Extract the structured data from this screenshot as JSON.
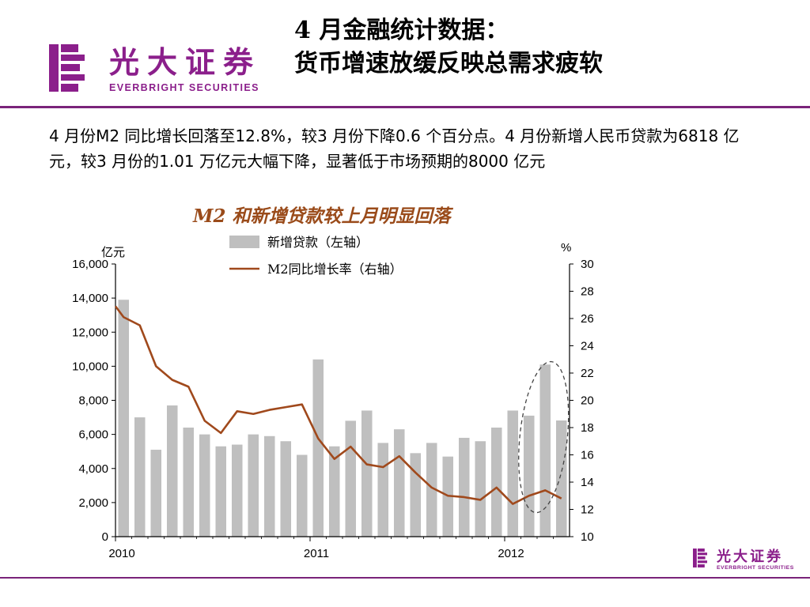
{
  "brand": {
    "name_cn": "光大证券",
    "name_en": "EVERBRIGHT SECURITIES",
    "color": "#8b1f8b"
  },
  "header": {
    "title_line1": "4 月金融统计数据：",
    "title_line2": "货币增速放缓反映总需求疲软"
  },
  "description": "4 月份M2 同比增长回落至12.8%，较3 月份下降0.6 个百分点。4 月份新增人民币贷款为6818 亿元，较3 月份的1.01 万亿元大幅下降，显著低于市场预期的8000 亿元",
  "chart_data": {
    "type": "bar+line",
    "title": "M2 和新增贷款较上月明显回落",
    "left_unit": "亿元",
    "right_unit": "%",
    "legend": [
      "新增贷款（左轴）",
      "M2同比增长率（右轴）"
    ],
    "legend_placement": "top",
    "x_tick_labels": [
      "2010",
      "2011",
      "2012"
    ],
    "left_axis": {
      "min": 0,
      "max": 16000,
      "step": 2000,
      "tick_labels": [
        "0",
        "2,000",
        "4,000",
        "6,000",
        "8,000",
        "10,000",
        "12,000",
        "14,000",
        "16,000"
      ]
    },
    "right_axis": {
      "min": 10,
      "max": 30,
      "step": 2,
      "tick_labels": [
        "10",
        "12",
        "14",
        "16",
        "18",
        "20",
        "22",
        "24",
        "26",
        "28",
        "30"
      ]
    },
    "months": [
      "2010-01",
      "2010-02",
      "2010-03",
      "2010-04",
      "2010-05",
      "2010-06",
      "2010-07",
      "2010-08",
      "2010-09",
      "2010-10",
      "2010-11",
      "2010-12",
      "2011-01",
      "2011-02",
      "2011-03",
      "2011-04",
      "2011-05",
      "2011-06",
      "2011-07",
      "2011-08",
      "2011-09",
      "2011-10",
      "2011-11",
      "2011-12",
      "2012-01",
      "2012-02",
      "2012-03",
      "2012-04"
    ],
    "series": [
      {
        "name": "新增贷款（左轴）",
        "type": "bar",
        "color": "#bfbfbf",
        "values": [
          13900,
          7000,
          5100,
          7700,
          6400,
          6000,
          5300,
          5400,
          6000,
          5900,
          5600,
          4800,
          10400,
          5300,
          6800,
          7400,
          5500,
          6300,
          4900,
          5500,
          4700,
          5800,
          5600,
          6400,
          7400,
          7100,
          10100,
          6818
        ]
      },
      {
        "name": "M2同比增长率（右轴）",
        "type": "line",
        "color": "#a0491c",
        "values": [
          26.1,
          25.5,
          22.5,
          21.5,
          21.0,
          18.5,
          17.6,
          19.2,
          19.0,
          19.3,
          19.5,
          19.7,
          17.2,
          15.7,
          16.6,
          15.3,
          15.1,
          15.9,
          14.7,
          13.6,
          13.0,
          12.9,
          12.7,
          13.6,
          12.4,
          13.0,
          13.4,
          12.8
        ]
      }
    ],
    "annotation": "dashed ellipse around last months"
  }
}
